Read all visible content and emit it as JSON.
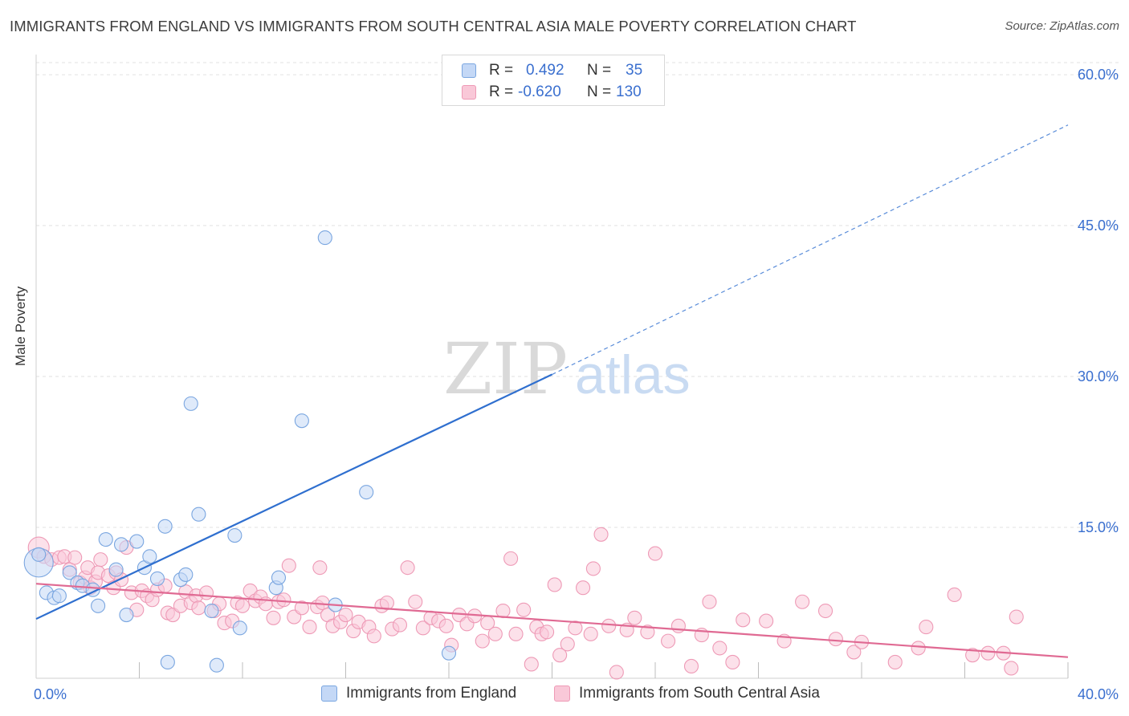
{
  "title": "IMMIGRANTS FROM ENGLAND VS IMMIGRANTS FROM SOUTH CENTRAL ASIA MALE POVERTY CORRELATION CHART",
  "source": "Source: ZipAtlas.com",
  "watermark": {
    "part1": "ZIP",
    "part2": "atlas"
  },
  "legend": {
    "rows": [
      {
        "r_label": "R =",
        "r_value": "0.492",
        "n_label": "N =",
        "n_value": "35"
      },
      {
        "r_label": "R =",
        "r_value": "-0.620",
        "n_label": "N =",
        "n_value": "130"
      }
    ]
  },
  "bottom_legend": [
    "Immigrants from England",
    "Immigrants from South Central Asia"
  ],
  "colors": {
    "england_fill": "#c4d8f6",
    "england_stroke": "#7aa6e0",
    "england_line": "#2f6fcf",
    "asia_fill": "#f9c8d8",
    "asia_stroke": "#ee9ab6",
    "asia_line": "#e06a93",
    "axis_text": "#3a6fcf",
    "grid": "#e2e2e2"
  },
  "chart_data": {
    "type": "scatter",
    "title": "IMMIGRANTS FROM ENGLAND VS IMMIGRANTS FROM SOUTH CENTRAL ASIA MALE POVERTY CORRELATION CHART",
    "xlabel": "",
    "ylabel": "Male Poverty",
    "xlim": [
      0,
      40
    ],
    "ylim": [
      0,
      62
    ],
    "x_tick_labels": [
      {
        "value": 0,
        "label": "0.0%"
      },
      {
        "value": 40,
        "label": "40.0%"
      }
    ],
    "y_ticks": [
      15,
      30,
      45,
      60
    ],
    "y_tick_labels": [
      "15.0%",
      "30.0%",
      "45.0%",
      "60.0%"
    ],
    "x_minor_ticks": [
      4,
      8,
      12,
      16,
      20,
      24,
      28,
      32,
      36,
      40
    ],
    "grid": true,
    "series": [
      {
        "name": "Immigrants from England",
        "r": 0.492,
        "n": 35,
        "points": [
          [
            0.1,
            11.5,
            3
          ],
          [
            0.1,
            12.3,
            1
          ],
          [
            0.4,
            8.5,
            1
          ],
          [
            0.7,
            8.0,
            1
          ],
          [
            0.9,
            8.2,
            1
          ],
          [
            1.3,
            10.5,
            1
          ],
          [
            1.6,
            9.5,
            1
          ],
          [
            1.8,
            9.2,
            1
          ],
          [
            2.2,
            8.8,
            1
          ],
          [
            2.4,
            7.2,
            1
          ],
          [
            2.7,
            13.8,
            1
          ],
          [
            3.1,
            10.8,
            1
          ],
          [
            3.3,
            13.3,
            1
          ],
          [
            3.5,
            6.3,
            1
          ],
          [
            3.9,
            13.6,
            1
          ],
          [
            4.2,
            11.0,
            1
          ],
          [
            4.4,
            12.1,
            1
          ],
          [
            4.7,
            9.9,
            1
          ],
          [
            5.0,
            15.1,
            1
          ],
          [
            5.1,
            1.6,
            1
          ],
          [
            5.6,
            9.8,
            1
          ],
          [
            5.8,
            10.3,
            1
          ],
          [
            6.0,
            27.3,
            1
          ],
          [
            6.3,
            16.3,
            1
          ],
          [
            6.8,
            6.7,
            1
          ],
          [
            7.0,
            1.3,
            1
          ],
          [
            7.7,
            14.2,
            1
          ],
          [
            7.9,
            5.0,
            1
          ],
          [
            9.3,
            9.0,
            1
          ],
          [
            9.4,
            10.0,
            1
          ],
          [
            10.3,
            25.6,
            1
          ],
          [
            11.2,
            43.8,
            1
          ],
          [
            11.6,
            7.3,
            1
          ],
          [
            12.8,
            18.5,
            1
          ],
          [
            16.0,
            2.5,
            1
          ]
        ]
      },
      {
        "name": "Immigrants from South Central Asia",
        "r": -0.62,
        "n": 130,
        "points": [
          [
            0.1,
            13.0,
            2
          ],
          [
            0.3,
            12.1,
            1
          ],
          [
            0.6,
            11.8,
            1
          ],
          [
            0.9,
            12.0,
            1
          ],
          [
            1.1,
            12.1,
            1
          ],
          [
            1.3,
            10.8,
            1
          ],
          [
            1.5,
            12.0,
            1
          ],
          [
            1.7,
            9.5,
            1
          ],
          [
            1.9,
            10.0,
            1
          ],
          [
            2.0,
            11.0,
            1
          ],
          [
            2.1,
            9.0,
            1
          ],
          [
            2.3,
            9.6,
            1
          ],
          [
            2.4,
            10.5,
            1
          ],
          [
            2.5,
            11.8,
            1
          ],
          [
            2.8,
            10.2,
            1
          ],
          [
            3.0,
            9.0,
            1
          ],
          [
            3.1,
            10.5,
            1
          ],
          [
            3.3,
            9.8,
            1
          ],
          [
            3.5,
            13.0,
            1
          ],
          [
            3.7,
            8.5,
            1
          ],
          [
            3.9,
            6.8,
            1
          ],
          [
            4.1,
            8.7,
            1
          ],
          [
            4.3,
            8.2,
            1
          ],
          [
            4.5,
            7.8,
            1
          ],
          [
            4.7,
            8.8,
            1
          ],
          [
            5.0,
            9.2,
            1
          ],
          [
            5.1,
            6.5,
            1
          ],
          [
            5.3,
            6.3,
            1
          ],
          [
            5.6,
            7.2,
            1
          ],
          [
            5.8,
            8.6,
            1
          ],
          [
            6.0,
            7.5,
            1
          ],
          [
            6.2,
            8.2,
            1
          ],
          [
            6.3,
            7.0,
            1
          ],
          [
            6.6,
            8.5,
            1
          ],
          [
            6.9,
            6.7,
            1
          ],
          [
            7.1,
            7.4,
            1
          ],
          [
            7.3,
            5.5,
            1
          ],
          [
            7.6,
            5.7,
            1
          ],
          [
            7.8,
            7.5,
            1
          ],
          [
            8.0,
            7.2,
            1
          ],
          [
            8.3,
            8.7,
            1
          ],
          [
            8.5,
            7.7,
            1
          ],
          [
            8.7,
            8.1,
            1
          ],
          [
            8.9,
            7.4,
            1
          ],
          [
            9.2,
            6.0,
            1
          ],
          [
            9.4,
            7.6,
            1
          ],
          [
            9.6,
            7.8,
            1
          ],
          [
            9.8,
            11.2,
            1
          ],
          [
            10.0,
            6.1,
            1
          ],
          [
            10.3,
            7.0,
            1
          ],
          [
            10.6,
            5.1,
            1
          ],
          [
            10.9,
            7.1,
            1
          ],
          [
            11.0,
            11.0,
            1
          ],
          [
            11.1,
            7.5,
            1
          ],
          [
            11.3,
            6.3,
            1
          ],
          [
            11.5,
            5.2,
            1
          ],
          [
            11.8,
            5.6,
            1
          ],
          [
            12.0,
            6.3,
            1
          ],
          [
            12.3,
            4.7,
            1
          ],
          [
            12.5,
            5.6,
            1
          ],
          [
            12.9,
            5.1,
            1
          ],
          [
            13.1,
            4.2,
            1
          ],
          [
            13.4,
            7.2,
            1
          ],
          [
            13.6,
            7.5,
            1
          ],
          [
            13.8,
            4.9,
            1
          ],
          [
            14.1,
            5.3,
            1
          ],
          [
            14.4,
            11.0,
            1
          ],
          [
            14.7,
            7.6,
            1
          ],
          [
            15.0,
            5.0,
            1
          ],
          [
            15.3,
            6.0,
            1
          ],
          [
            15.6,
            5.7,
            1
          ],
          [
            15.9,
            5.2,
            1
          ],
          [
            16.1,
            3.3,
            1
          ],
          [
            16.4,
            6.3,
            1
          ],
          [
            16.7,
            5.4,
            1
          ],
          [
            17.0,
            6.2,
            1
          ],
          [
            17.3,
            3.7,
            1
          ],
          [
            17.5,
            5.5,
            1
          ],
          [
            17.8,
            4.4,
            1
          ],
          [
            18.1,
            6.7,
            1
          ],
          [
            18.4,
            11.9,
            1
          ],
          [
            18.6,
            4.4,
            1
          ],
          [
            18.9,
            6.8,
            1
          ],
          [
            19.2,
            1.4,
            1
          ],
          [
            19.4,
            5.1,
            1
          ],
          [
            19.6,
            4.4,
            1
          ],
          [
            19.8,
            4.6,
            1
          ],
          [
            20.1,
            9.3,
            1
          ],
          [
            20.3,
            2.3,
            1
          ],
          [
            20.6,
            3.4,
            1
          ],
          [
            20.9,
            5.0,
            1
          ],
          [
            21.2,
            9.0,
            1
          ],
          [
            21.5,
            4.4,
            1
          ],
          [
            21.6,
            10.9,
            1
          ],
          [
            21.9,
            14.3,
            1
          ],
          [
            22.2,
            5.2,
            1
          ],
          [
            22.5,
            0.6,
            1
          ],
          [
            22.9,
            4.8,
            1
          ],
          [
            23.2,
            6.0,
            1
          ],
          [
            23.7,
            4.6,
            1
          ],
          [
            24.0,
            12.4,
            1
          ],
          [
            24.5,
            3.7,
            1
          ],
          [
            24.9,
            5.2,
            1
          ],
          [
            25.4,
            1.2,
            1
          ],
          [
            25.8,
            4.3,
            1
          ],
          [
            26.1,
            7.6,
            1
          ],
          [
            26.5,
            3.0,
            1
          ],
          [
            27.0,
            1.6,
            1
          ],
          [
            27.4,
            5.8,
            1
          ],
          [
            28.3,
            5.7,
            1
          ],
          [
            29.0,
            3.7,
            1
          ],
          [
            29.7,
            7.6,
            1
          ],
          [
            30.6,
            6.7,
            1
          ],
          [
            31.0,
            3.9,
            1
          ],
          [
            31.7,
            2.6,
            1
          ],
          [
            32.0,
            3.6,
            1
          ],
          [
            33.3,
            1.6,
            1
          ],
          [
            34.2,
            3.0,
            1
          ],
          [
            34.5,
            5.1,
            1
          ],
          [
            35.6,
            8.3,
            1
          ],
          [
            36.3,
            2.3,
            1
          ],
          [
            36.9,
            2.5,
            1
          ],
          [
            37.5,
            2.5,
            1
          ],
          [
            37.8,
            1.0,
            1
          ],
          [
            38.0,
            6.1,
            1
          ]
        ]
      }
    ],
    "trend_lines": [
      {
        "series": "Immigrants from England",
        "x0": 0,
        "y0": 5.9,
        "x1": 20.0,
        "y1": 30.2,
        "dashed_to_x": 40,
        "dashed_to_y": 55.0
      },
      {
        "series": "Immigrants from South Central Asia",
        "x0": 0,
        "y0": 9.4,
        "x1": 40,
        "y1": 2.1
      }
    ]
  }
}
